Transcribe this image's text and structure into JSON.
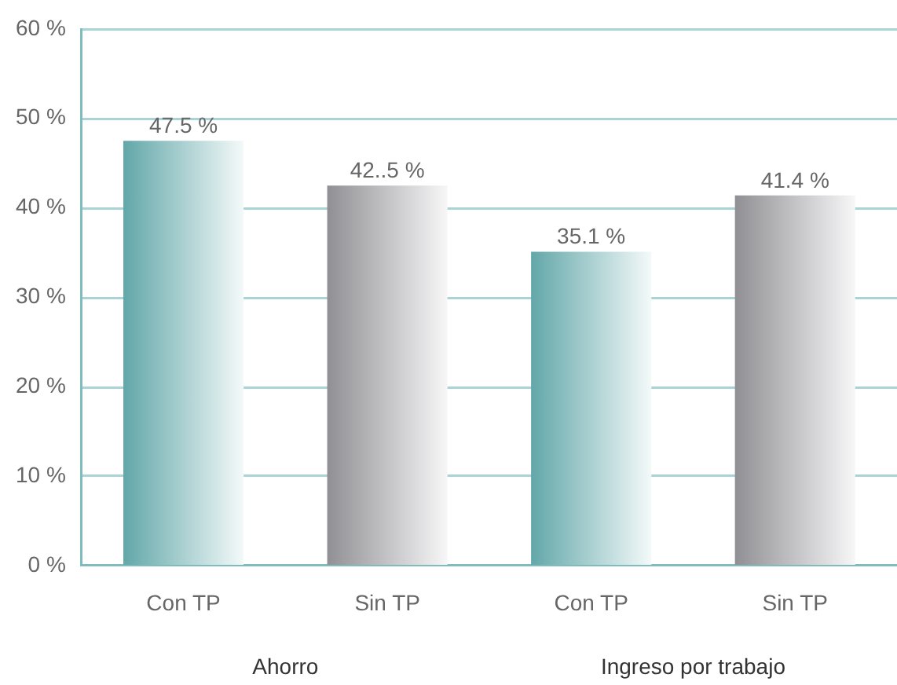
{
  "chart_data": {
    "type": "bar",
    "categories": [
      "Con TP",
      "Sin TP",
      "Con TP",
      "Sin TP"
    ],
    "values": [
      47.5,
      42.5,
      35.1,
      41.4
    ],
    "colors": [
      "#62a7a9",
      "#909094",
      "#62a7a9",
      "#909094"
    ],
    "value_labels": [
      "47.5 %",
      "42..5 %",
      "35.1 %",
      "41.4 %"
    ],
    "ylim": [
      0,
      60
    ],
    "yticks": [
      {
        "value": 0,
        "label": "0 %"
      },
      {
        "value": 10,
        "label": "10 %"
      },
      {
        "value": 20,
        "label": "20 %"
      },
      {
        "value": 30,
        "label": "30 %"
      },
      {
        "value": 40,
        "label": "40 %"
      },
      {
        "value": 50,
        "label": "50 %"
      },
      {
        "value": 60,
        "label": "60 %"
      }
    ],
    "grid": "y",
    "annotations": [
      "Ahorro",
      "Ingreso por trabajo"
    ]
  }
}
